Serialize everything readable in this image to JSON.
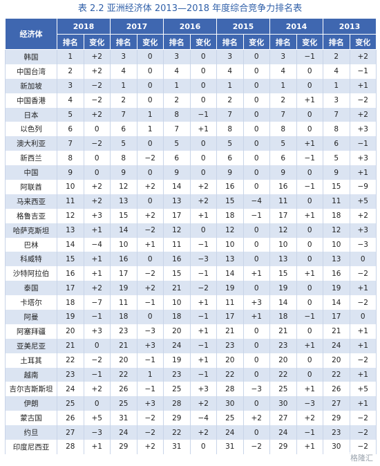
{
  "title": "表 2.2   亚洲经济体 2013—2018 年度综合竞争力排名表",
  "header": {
    "country": "经济体",
    "years": [
      "2018",
      "2017",
      "2016",
      "2015",
      "2014",
      "2013"
    ],
    "rank": "排名",
    "change": "变化"
  },
  "rows": [
    {
      "name": "韩国",
      "v": [
        "1",
        "+2",
        "3",
        "0",
        "3",
        "0",
        "3",
        "0",
        "3",
        "−1",
        "2",
        "+2"
      ]
    },
    {
      "name": "中国台湾",
      "v": [
        "2",
        "+2",
        "4",
        "0",
        "4",
        "0",
        "4",
        "0",
        "4",
        "0",
        "4",
        "−1"
      ]
    },
    {
      "name": "新加坡",
      "v": [
        "3",
        "−2",
        "1",
        "0",
        "1",
        "0",
        "1",
        "0",
        "1",
        "0",
        "1",
        "+1"
      ]
    },
    {
      "name": "中国香港",
      "v": [
        "4",
        "−2",
        "2",
        "0",
        "2",
        "0",
        "2",
        "0",
        "2",
        "+1",
        "3",
        "−2"
      ]
    },
    {
      "name": "日本",
      "v": [
        "5",
        "+2",
        "7",
        "1",
        "8",
        "−1",
        "7",
        "0",
        "7",
        "0",
        "7",
        "+2"
      ]
    },
    {
      "name": "以色列",
      "v": [
        "6",
        "0",
        "6",
        "1",
        "7",
        "+1",
        "8",
        "0",
        "8",
        "0",
        "8",
        "+3"
      ]
    },
    {
      "name": "澳大利亚",
      "v": [
        "7",
        "−2",
        "5",
        "0",
        "5",
        "0",
        "5",
        "0",
        "5",
        "+1",
        "6",
        "−1"
      ]
    },
    {
      "name": "新西兰",
      "v": [
        "8",
        "0",
        "8",
        "−2",
        "6",
        "0",
        "6",
        "0",
        "6",
        "−1",
        "5",
        "+3"
      ]
    },
    {
      "name": "中国",
      "v": [
        "9",
        "0",
        "9",
        "0",
        "9",
        "0",
        "9",
        "0",
        "9",
        "0",
        "9",
        "+1"
      ]
    },
    {
      "name": "阿联酋",
      "v": [
        "10",
        "+2",
        "12",
        "+2",
        "14",
        "+2",
        "16",
        "0",
        "16",
        "−1",
        "15",
        "−9"
      ]
    },
    {
      "name": "马来西亚",
      "v": [
        "11",
        "+2",
        "13",
        "0",
        "13",
        "+2",
        "15",
        "−4",
        "11",
        "0",
        "11",
        "+5"
      ]
    },
    {
      "name": "格鲁吉亚",
      "v": [
        "12",
        "+3",
        "15",
        "+2",
        "17",
        "+1",
        "18",
        "−1",
        "17",
        "+1",
        "18",
        "+2"
      ]
    },
    {
      "name": "哈萨克斯坦",
      "v": [
        "13",
        "+1",
        "14",
        "−2",
        "12",
        "0",
        "12",
        "0",
        "12",
        "0",
        "12",
        "+3"
      ]
    },
    {
      "name": "巴林",
      "v": [
        "14",
        "−4",
        "10",
        "+1",
        "11",
        "−1",
        "10",
        "0",
        "10",
        "0",
        "10",
        "−3"
      ]
    },
    {
      "name": "科威特",
      "v": [
        "15",
        "+1",
        "16",
        "0",
        "16",
        "−3",
        "13",
        "0",
        "13",
        "0",
        "13",
        "0"
      ]
    },
    {
      "name": "沙特阿拉伯",
      "v": [
        "16",
        "+1",
        "17",
        "−2",
        "15",
        "−1",
        "14",
        "+1",
        "15",
        "+1",
        "16",
        "−2"
      ]
    },
    {
      "name": "泰国",
      "v": [
        "17",
        "+2",
        "19",
        "+2",
        "21",
        "−2",
        "19",
        "0",
        "19",
        "0",
        "19",
        "+1"
      ]
    },
    {
      "name": "卡塔尔",
      "v": [
        "18",
        "−7",
        "11",
        "−1",
        "10",
        "+1",
        "11",
        "+3",
        "14",
        "0",
        "14",
        "−2"
      ]
    },
    {
      "name": "阿曼",
      "v": [
        "19",
        "−1",
        "18",
        "0",
        "18",
        "−1",
        "17",
        "+1",
        "18",
        "−1",
        "17",
        "0"
      ]
    },
    {
      "name": "阿塞拜疆",
      "v": [
        "20",
        "+3",
        "23",
        "−3",
        "20",
        "+1",
        "21",
        "0",
        "21",
        "0",
        "21",
        "+1"
      ]
    },
    {
      "name": "亚美尼亚",
      "v": [
        "21",
        "0",
        "21",
        "+3",
        "24",
        "−1",
        "23",
        "0",
        "23",
        "+1",
        "24",
        "+1"
      ]
    },
    {
      "name": "土耳其",
      "v": [
        "22",
        "−2",
        "20",
        "−1",
        "19",
        "+1",
        "20",
        "0",
        "20",
        "0",
        "20",
        "−2"
      ]
    },
    {
      "name": "越南",
      "v": [
        "23",
        "−1",
        "22",
        "1",
        "23",
        "−1",
        "22",
        "0",
        "22",
        "0",
        "22",
        "+1"
      ]
    },
    {
      "name": "吉尔吉斯斯坦",
      "v": [
        "24",
        "+2",
        "26",
        "−1",
        "25",
        "+3",
        "28",
        "−3",
        "25",
        "+1",
        "26",
        "+5"
      ]
    },
    {
      "name": "伊朗",
      "v": [
        "25",
        "0",
        "25",
        "+3",
        "28",
        "+2",
        "30",
        "0",
        "30",
        "−3",
        "27",
        "+1"
      ]
    },
    {
      "name": "蒙古国",
      "v": [
        "26",
        "+5",
        "31",
        "−2",
        "29",
        "−4",
        "25",
        "+2",
        "27",
        "+2",
        "29",
        "−2"
      ]
    },
    {
      "name": "约旦",
      "v": [
        "27",
        "−3",
        "24",
        "−2",
        "22",
        "+2",
        "24",
        "0",
        "24",
        "−1",
        "23",
        "−2"
      ]
    },
    {
      "name": "印度尼西亚",
      "v": [
        "28",
        "+1",
        "29",
        "+2",
        "31",
        "0",
        "31",
        "−2",
        "29",
        "+1",
        "30",
        "−2"
      ]
    }
  ],
  "watermark": "格隆汇"
}
